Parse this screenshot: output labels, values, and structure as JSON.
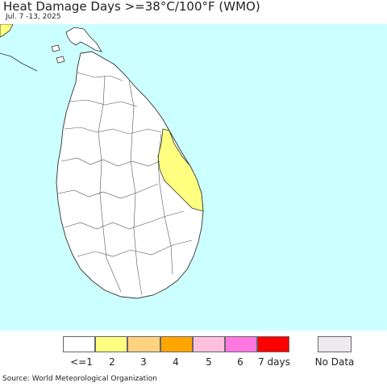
{
  "title": "Heat Damage Days >=38°C/100°F (WMO)",
  "date_range": "Jul. 7 -13, 2025",
  "source": "Source: World Meteorological Organization",
  "colors": {
    "sea": "#ccffff",
    "land": "#ffffff",
    "border": "#333333",
    "highlight": "#ffff80"
  },
  "legend": {
    "items": [
      {
        "label": "<=1",
        "color": "#ffffff"
      },
      {
        "label": "2",
        "color": "#ffff80"
      },
      {
        "label": "3",
        "color": "#ffd27f"
      },
      {
        "label": "4",
        "color": "#ffa500"
      },
      {
        "label": "5",
        "color": "#ffc0e0"
      },
      {
        "label": "6",
        "color": "#ff77e0"
      },
      {
        "label": "7 days",
        "color": "#ff0000"
      }
    ],
    "no_data": {
      "label": "No Data",
      "color": "#efeaef"
    }
  }
}
